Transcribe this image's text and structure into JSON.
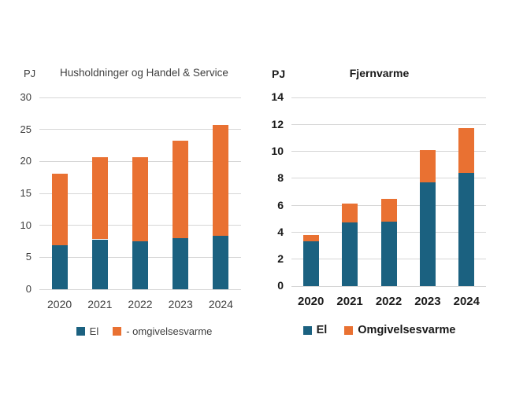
{
  "page": {
    "background": "#ffffff"
  },
  "chart_data": [
    {
      "type": "bar",
      "stacked": true,
      "title": "Husholdninger og Handel & Service",
      "unit": "PJ",
      "categories": [
        "2020",
        "2021",
        "2022",
        "2023",
        "2024"
      ],
      "series": [
        {
          "name": "El",
          "color": "#1b6180",
          "values": [
            6.9,
            7.8,
            7.5,
            8.0,
            8.4
          ]
        },
        {
          "name": "- omgivelsesvarme",
          "color": "#e97132",
          "values": [
            11.2,
            12.9,
            13.2,
            15.3,
            17.3
          ]
        }
      ],
      "stack_totals": [
        18.1,
        20.7,
        20.7,
        23.3,
        25.7
      ],
      "ylim": [
        0,
        30
      ],
      "ytick_step": 5,
      "grid": true,
      "legend_position": "bottom"
    },
    {
      "type": "bar",
      "stacked": true,
      "title": "Fjernvarme",
      "unit": "PJ",
      "categories": [
        "2020",
        "2021",
        "2022",
        "2023",
        "2024"
      ],
      "series": [
        {
          "name": "El",
          "color": "#1b6180",
          "values": [
            3.3,
            4.7,
            4.8,
            7.7,
            8.4
          ]
        },
        {
          "name": "Omgivelsesvarme",
          "color": "#e97132",
          "values": [
            0.5,
            1.4,
            1.7,
            2.4,
            3.3
          ]
        }
      ],
      "stack_totals": [
        3.8,
        6.1,
        6.5,
        10.1,
        11.7
      ],
      "ylim": [
        0,
        14
      ],
      "ytick_step": 2,
      "grid": true,
      "legend_position": "bottom"
    }
  ]
}
